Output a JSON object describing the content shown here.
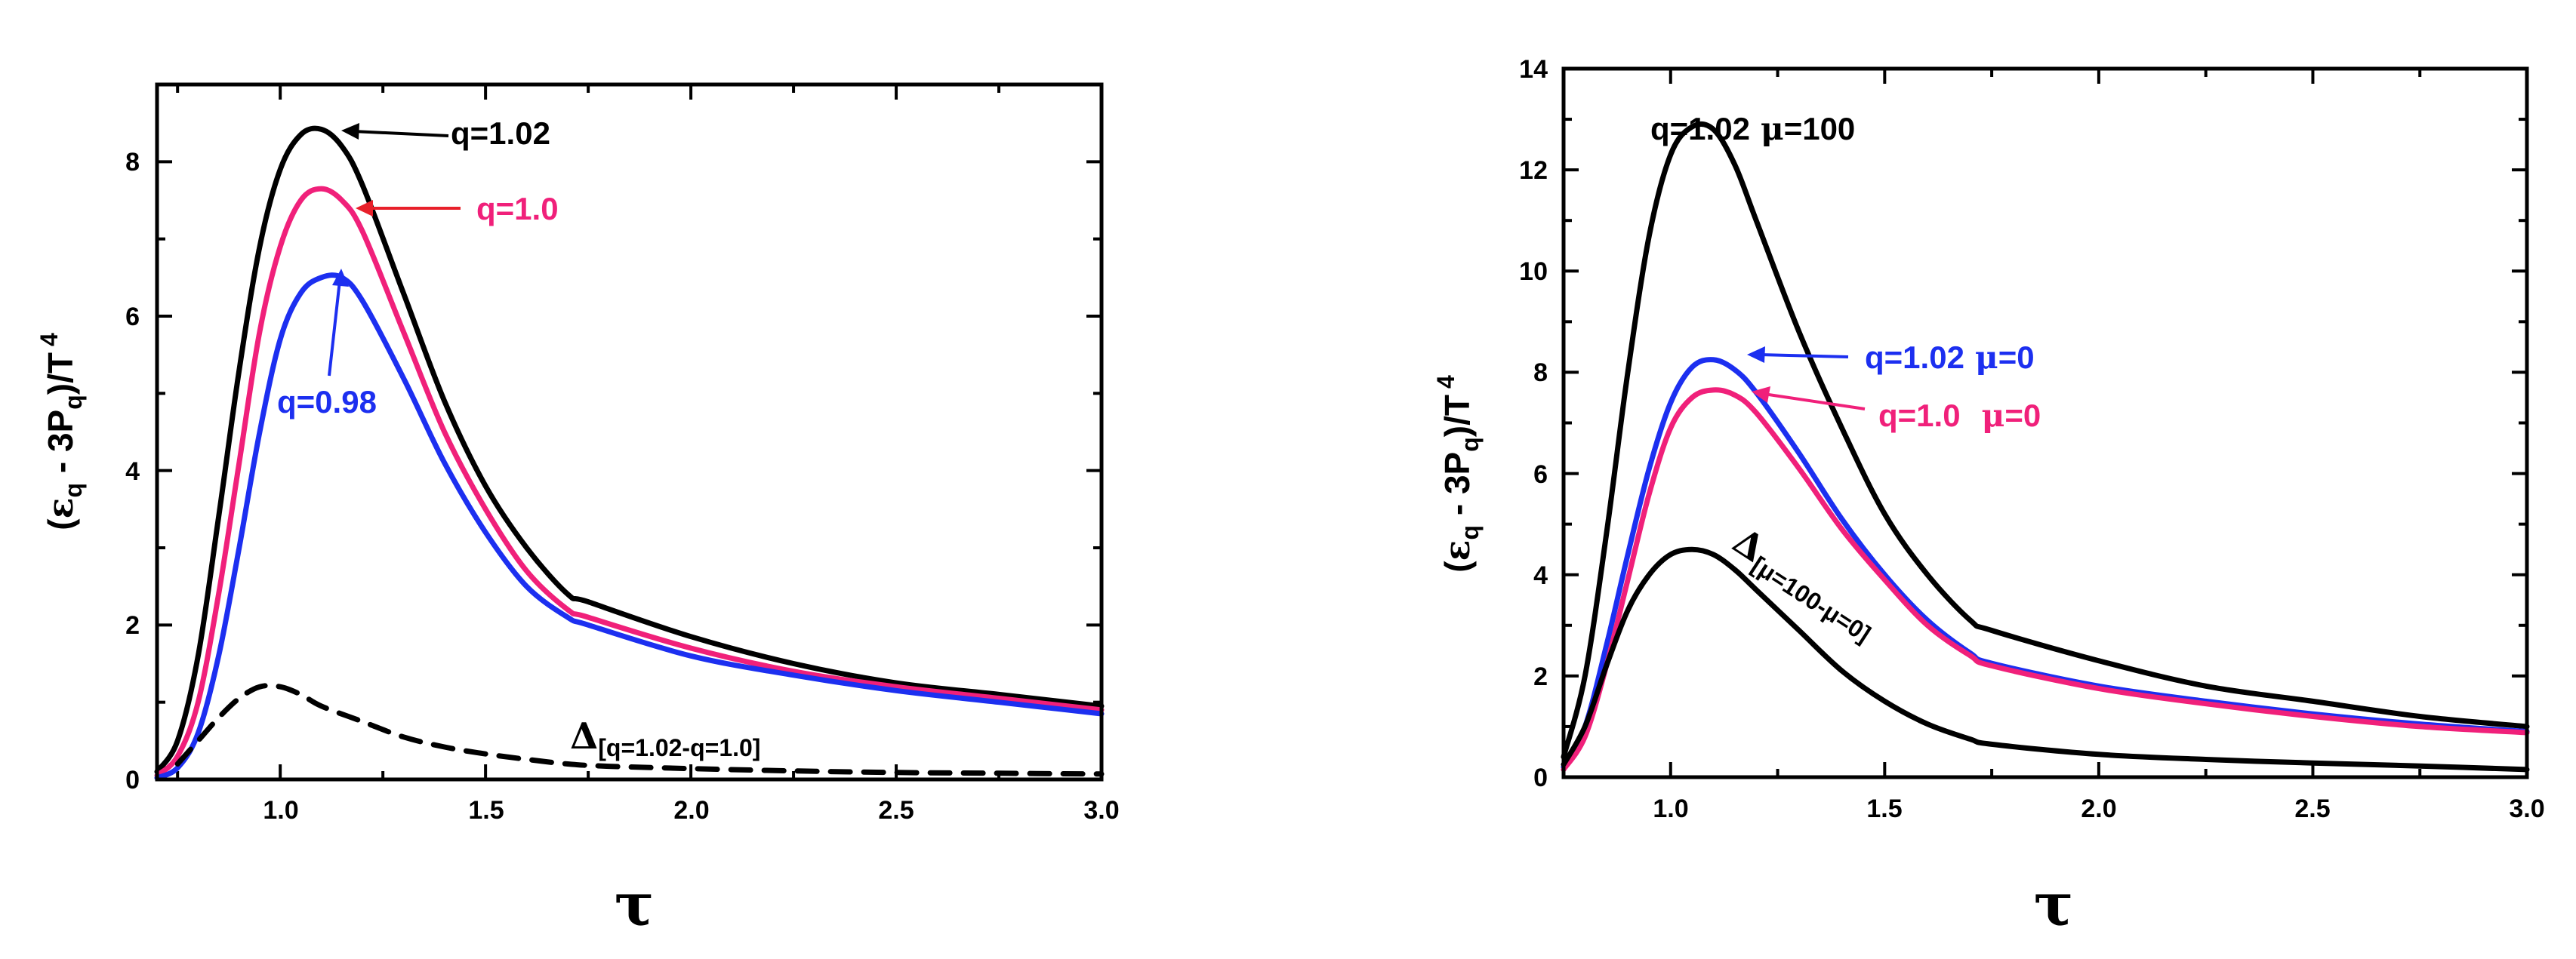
{
  "chart_data": [
    {
      "type": "line",
      "xlabel": "τ",
      "ylabel": "(ε_q - 3P_q)/T^4",
      "xlim": [
        0.7,
        3.0
      ],
      "ylim": [
        0,
        9
      ],
      "xticks": [
        1.0,
        1.5,
        2.0,
        2.5,
        3.0
      ],
      "xtick_labels": [
        "1.0",
        "1.5",
        "2.0",
        "2.5",
        "3.0"
      ],
      "yticks": [
        0,
        2,
        4,
        6,
        8
      ],
      "ytick_labels": [
        "0",
        "2",
        "4",
        "6",
        "8"
      ],
      "grid": false,
      "series": [
        {
          "name": "q=1.02",
          "color": "#000000",
          "style": "solid",
          "x": [
            0.7,
            0.75,
            0.8,
            0.85,
            0.9,
            0.95,
            1.0,
            1.05,
            1.1,
            1.15,
            1.2,
            1.3,
            1.4,
            1.5,
            1.6,
            1.7,
            1.75,
            2.0,
            2.25,
            2.5,
            2.75,
            3.0
          ],
          "y": [
            0.1,
            0.5,
            1.6,
            3.4,
            5.3,
            6.9,
            7.9,
            8.35,
            8.42,
            8.2,
            7.7,
            6.3,
            4.9,
            3.8,
            3.0,
            2.4,
            2.3,
            1.85,
            1.5,
            1.25,
            1.1,
            0.95
          ]
        },
        {
          "name": "q=1.0",
          "color": "#f0207a",
          "style": "solid",
          "x": [
            0.7,
            0.75,
            0.8,
            0.85,
            0.9,
            0.95,
            1.0,
            1.05,
            1.1,
            1.15,
            1.2,
            1.3,
            1.4,
            1.5,
            1.6,
            1.7,
            1.75,
            2.0,
            2.25,
            2.5,
            2.75,
            3.0
          ],
          "y": [
            0.05,
            0.3,
            1.0,
            2.4,
            4.1,
            5.8,
            6.9,
            7.5,
            7.65,
            7.5,
            7.1,
            5.8,
            4.5,
            3.5,
            2.7,
            2.2,
            2.1,
            1.7,
            1.4,
            1.2,
            1.05,
            0.9
          ]
        },
        {
          "name": "q=0.98",
          "color": "#1c2ff0",
          "style": "solid",
          "x": [
            0.7,
            0.75,
            0.8,
            0.85,
            0.9,
            0.95,
            1.0,
            1.05,
            1.1,
            1.15,
            1.2,
            1.3,
            1.4,
            1.5,
            1.6,
            1.7,
            1.75,
            2.0,
            2.25,
            2.5,
            2.75,
            3.0
          ],
          "y": [
            0.02,
            0.15,
            0.6,
            1.6,
            3.0,
            4.5,
            5.7,
            6.3,
            6.5,
            6.5,
            6.2,
            5.2,
            4.1,
            3.2,
            2.5,
            2.1,
            2.0,
            1.6,
            1.35,
            1.15,
            1.0,
            0.85
          ]
        },
        {
          "name": "Δ[q=1.02-q=1.0]",
          "color": "#000000",
          "style": "dashed",
          "x": [
            0.75,
            0.8,
            0.85,
            0.9,
            0.95,
            1.0,
            1.05,
            1.1,
            1.2,
            1.3,
            1.4,
            1.5,
            1.6,
            1.7,
            1.8,
            2.0,
            2.25,
            2.5,
            2.75,
            3.0
          ],
          "y": [
            0.2,
            0.5,
            0.8,
            1.05,
            1.2,
            1.2,
            1.1,
            0.95,
            0.75,
            0.55,
            0.42,
            0.33,
            0.26,
            0.2,
            0.17,
            0.14,
            0.11,
            0.09,
            0.08,
            0.07
          ]
        }
      ],
      "annotations": {
        "q102": "q=1.02",
        "q10": "q=1.0",
        "q098": "q=0.98",
        "delta_symbol": "Δ",
        "delta_sub": "[q=1.02-q=1.0]"
      }
    },
    {
      "type": "line",
      "xlabel": "τ",
      "ylabel": "(ε_q - 3P_q)/T^4",
      "xlim": [
        0.75,
        3.0
      ],
      "ylim": [
        0,
        14
      ],
      "xticks": [
        1.0,
        1.5,
        2.0,
        2.5,
        3.0
      ],
      "xtick_labels": [
        "1.0",
        "1.5",
        "2.0",
        "2.5",
        "3.0"
      ],
      "yticks": [
        0,
        2,
        4,
        6,
        8,
        10,
        12,
        14
      ],
      "ytick_labels": [
        "0",
        "2",
        "4",
        "6",
        "8",
        "10",
        "12",
        "14"
      ],
      "grid": false,
      "series": [
        {
          "name": "q=1.02 μ=100",
          "color": "#000000",
          "style": "solid",
          "x": [
            0.75,
            0.8,
            0.85,
            0.9,
            0.95,
            1.0,
            1.05,
            1.1,
            1.15,
            1.2,
            1.3,
            1.4,
            1.5,
            1.6,
            1.7,
            1.75,
            2.0,
            2.25,
            2.5,
            2.75,
            3.0
          ],
          "y": [
            0.4,
            2.0,
            4.8,
            8.0,
            10.7,
            12.3,
            12.85,
            12.8,
            12.1,
            11.0,
            8.8,
            6.9,
            5.2,
            4.0,
            3.1,
            2.9,
            2.3,
            1.8,
            1.5,
            1.2,
            1.0
          ]
        },
        {
          "name": "q=1.02 μ=0",
          "color": "#1c2ff0",
          "style": "solid",
          "x": [
            0.75,
            0.8,
            0.85,
            0.9,
            0.95,
            1.0,
            1.05,
            1.1,
            1.15,
            1.2,
            1.3,
            1.4,
            1.5,
            1.6,
            1.7,
            1.75,
            2.0,
            2.25,
            2.5,
            2.75,
            3.0
          ],
          "y": [
            0.2,
            1.0,
            2.6,
            4.4,
            6.1,
            7.4,
            8.1,
            8.25,
            8.05,
            7.6,
            6.4,
            5.1,
            4.0,
            3.1,
            2.45,
            2.25,
            1.8,
            1.5,
            1.25,
            1.05,
            0.9
          ]
        },
        {
          "name": "q=1.0 μ=0",
          "color": "#f0207a",
          "style": "solid",
          "x": [
            0.75,
            0.8,
            0.85,
            0.9,
            0.95,
            1.0,
            1.05,
            1.1,
            1.15,
            1.2,
            1.3,
            1.4,
            1.5,
            1.6,
            1.7,
            1.75,
            2.0,
            2.25,
            2.5,
            2.75,
            3.0
          ],
          "y": [
            0.15,
            0.8,
            2.2,
            3.9,
            5.6,
            6.9,
            7.5,
            7.65,
            7.55,
            7.2,
            6.1,
            4.9,
            3.9,
            3.0,
            2.4,
            2.2,
            1.75,
            1.45,
            1.2,
            1.0,
            0.88
          ]
        },
        {
          "name": "Δ[μ=100-μ=0]",
          "color": "#000000",
          "style": "solid",
          "x": [
            0.75,
            0.8,
            0.85,
            0.9,
            0.95,
            1.0,
            1.05,
            1.1,
            1.15,
            1.2,
            1.3,
            1.4,
            1.5,
            1.6,
            1.7,
            1.75,
            2.0,
            2.25,
            2.5,
            2.75,
            3.0
          ],
          "y": [
            0.25,
            1.0,
            2.2,
            3.3,
            4.0,
            4.4,
            4.5,
            4.4,
            4.1,
            3.7,
            2.9,
            2.1,
            1.5,
            1.05,
            0.75,
            0.65,
            0.45,
            0.35,
            0.28,
            0.22,
            0.15
          ]
        }
      ],
      "annotations": {
        "top_q": "q=1.02",
        "top_mu_sym": "μ",
        "top_mu_val": "=100",
        "blue_q": "q=1.02",
        "blue_mu_sym": "μ",
        "blue_mu_val": "=0",
        "pink_q": "q=1.0",
        "pink_mu_sym": "μ",
        "pink_mu_val": "=0",
        "delta_symbol": "Δ",
        "delta_sub": "[μ=100-μ=0]"
      }
    }
  ],
  "labels": {
    "ylabel_open": "(",
    "ylabel_eps": "ε",
    "ylabel_q1": "q",
    "ylabel_mid": " - 3P",
    "ylabel_q2": "q",
    "ylabel_close": ")/T",
    "ylabel_exp": "4"
  }
}
